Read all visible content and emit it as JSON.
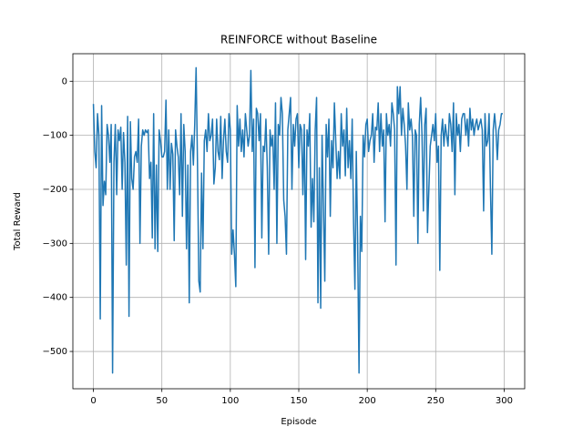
{
  "chart_data": {
    "type": "line",
    "title": "REINFORCE without Baseline",
    "x_label": "Episode",
    "y_label": "Total Reward",
    "color": "#1f77b4",
    "grid": true,
    "xlim": [
      -15,
      315
    ],
    "ylim": [
      -569,
      51
    ],
    "xticks": [
      0,
      50,
      100,
      150,
      200,
      250,
      300
    ],
    "yticks": [
      {
        "value": -500,
        "label": "−500"
      },
      {
        "value": -400,
        "label": "−400"
      },
      {
        "value": -300,
        "label": "−300"
      },
      {
        "value": -200,
        "label": "−200"
      },
      {
        "value": -100,
        "label": "−100"
      },
      0
    ],
    "x": [
      0,
      1,
      2,
      3,
      4,
      5,
      6,
      7,
      8,
      9,
      10,
      11,
      12,
      13,
      14,
      15,
      16,
      17,
      18,
      19,
      20,
      21,
      22,
      23,
      24,
      25,
      26,
      27,
      28,
      29,
      30,
      31,
      32,
      33,
      34,
      35,
      36,
      37,
      38,
      39,
      40,
      41,
      42,
      43,
      44,
      45,
      46,
      47,
      48,
      49,
      50,
      51,
      52,
      53,
      54,
      55,
      56,
      57,
      58,
      59,
      60,
      61,
      62,
      63,
      64,
      65,
      66,
      67,
      68,
      69,
      70,
      71,
      72,
      73,
      74,
      75,
      76,
      77,
      78,
      79,
      80,
      81,
      82,
      83,
      84,
      85,
      86,
      87,
      88,
      89,
      90,
      91,
      92,
      93,
      94,
      95,
      96,
      97,
      98,
      99,
      100,
      101,
      102,
      103,
      104,
      105,
      106,
      107,
      108,
      109,
      110,
      111,
      112,
      113,
      114,
      115,
      116,
      117,
      118,
      119,
      120,
      121,
      122,
      123,
      124,
      125,
      126,
      127,
      128,
      129,
      130,
      131,
      132,
      133,
      134,
      135,
      136,
      137,
      138,
      139,
      140,
      141,
      142,
      143,
      144,
      145,
      146,
      147,
      148,
      149,
      150,
      151,
      152,
      153,
      154,
      155,
      156,
      157,
      158,
      159,
      160,
      161,
      162,
      163,
      164,
      165,
      166,
      167,
      168,
      169,
      170,
      171,
      172,
      173,
      174,
      175,
      176,
      177,
      178,
      179,
      180,
      181,
      182,
      183,
      184,
      185,
      186,
      187,
      188,
      189,
      190,
      191,
      192,
      193,
      194,
      195,
      196,
      197,
      198,
      199,
      200,
      201,
      202,
      203,
      204,
      205,
      206,
      207,
      208,
      209,
      210,
      211,
      212,
      213,
      214,
      215,
      216,
      217,
      218,
      219,
      220,
      221,
      222,
      223,
      224,
      225,
      226,
      227,
      228,
      229,
      230,
      231,
      232,
      233,
      234,
      235,
      236,
      237,
      238,
      239,
      240,
      241,
      242,
      243,
      244,
      245,
      246,
      247,
      248,
      249,
      250,
      251,
      252,
      253,
      254,
      255,
      256,
      257,
      258,
      259,
      260,
      261,
      262,
      263,
      264,
      265,
      266,
      267,
      268,
      269,
      270,
      271,
      272,
      273,
      274,
      275,
      276,
      277,
      278,
      279,
      280,
      281,
      282,
      283,
      284,
      285,
      286,
      287,
      288,
      289,
      290,
      291,
      292,
      293,
      294,
      295,
      296,
      297,
      298,
      299
    ],
    "values": [
      -42,
      -130,
      -160,
      -60,
      -100,
      -440,
      -45,
      -230,
      -185,
      -210,
      -80,
      -100,
      -150,
      -80,
      -540,
      -150,
      -80,
      -210,
      -90,
      -110,
      -85,
      -200,
      -95,
      -150,
      -340,
      -65,
      -435,
      -75,
      -180,
      -200,
      -140,
      -130,
      -150,
      -70,
      -300,
      -120,
      -90,
      -100,
      -90,
      -95,
      -90,
      -180,
      -150,
      -290,
      -60,
      -310,
      -155,
      -315,
      -90,
      -110,
      -140,
      -140,
      -130,
      -35,
      -200,
      -90,
      -200,
      -115,
      -135,
      -295,
      -90,
      -120,
      -140,
      -210,
      -60,
      -250,
      -80,
      -130,
      -310,
      -155,
      -410,
      -130,
      -100,
      -155,
      -80,
      25,
      -150,
      -370,
      -390,
      -170,
      -310,
      -110,
      -90,
      -130,
      -60,
      -110,
      -100,
      -70,
      -190,
      -160,
      -70,
      -130,
      -145,
      -65,
      -180,
      -110,
      -70,
      -130,
      -150,
      -60,
      -90,
      -320,
      -275,
      -320,
      -380,
      -45,
      -120,
      -70,
      -130,
      -90,
      -140,
      -60,
      -90,
      -120,
      -100,
      20,
      -130,
      -70,
      -345,
      -50,
      -60,
      -110,
      -60,
      -290,
      -120,
      -130,
      -70,
      -160,
      -320,
      -90,
      -120,
      -100,
      -200,
      -40,
      -300,
      -80,
      -100,
      -30,
      -60,
      -220,
      -250,
      -320,
      -90,
      -60,
      -30,
      -200,
      -80,
      -120,
      -70,
      -60,
      -160,
      -80,
      -90,
      -210,
      -80,
      -330,
      -90,
      -120,
      -60,
      -270,
      -180,
      -260,
      -90,
      -30,
      -410,
      -160,
      -420,
      -100,
      -230,
      -370,
      -80,
      -140,
      -70,
      -250,
      -110,
      -160,
      -40,
      -110,
      -180,
      -130,
      -180,
      -60,
      -120,
      -90,
      -175,
      -50,
      -160,
      -110,
      -180,
      -70,
      -260,
      -385,
      -130,
      -300,
      -540,
      -250,
      -315,
      -100,
      -140,
      -80,
      -70,
      -130,
      -110,
      -100,
      -60,
      -150,
      -85,
      -90,
      -40,
      -130,
      -60,
      -120,
      -90,
      -260,
      -60,
      -100,
      -80,
      -120,
      -40,
      -60,
      -90,
      -340,
      -10,
      -60,
      -10,
      -100,
      -50,
      -80,
      -120,
      -200,
      -40,
      -90,
      -70,
      -100,
      -250,
      -90,
      -100,
      -300,
      -80,
      -30,
      -100,
      -240,
      -80,
      -50,
      -280,
      -200,
      -120,
      -100,
      -80,
      -110,
      -60,
      -150,
      -120,
      -350,
      -100,
      -70,
      -120,
      -80,
      -100,
      -120,
      -60,
      -80,
      -130,
      -40,
      -210,
      -60,
      -100,
      -80,
      -130,
      -70,
      -60,
      -60,
      -100,
      -70,
      -120,
      -50,
      -90,
      -70,
      -100,
      -80,
      -70,
      -90,
      -80,
      -70,
      -90,
      -240,
      -60,
      -120,
      -110,
      -60,
      -200,
      -320,
      -90,
      -60,
      -90,
      -145,
      -90,
      -80,
      -60,
      -60
    ]
  }
}
